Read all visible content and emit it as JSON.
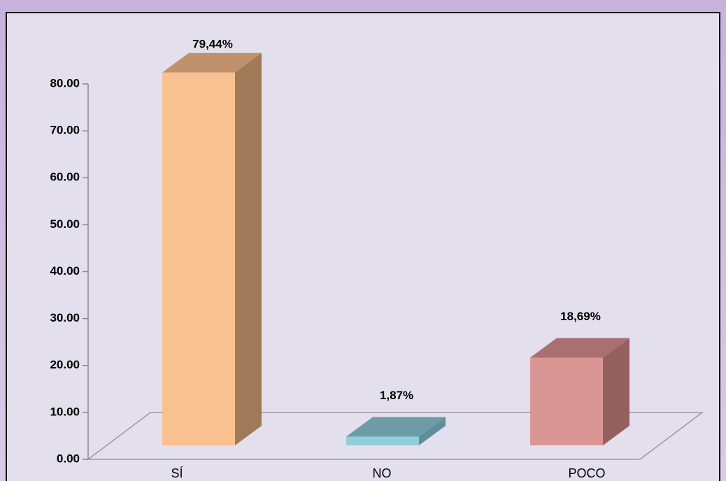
{
  "chart_data": {
    "type": "bar3d",
    "categories": [
      "SÍ",
      "NO",
      "POCO"
    ],
    "values": [
      79.44,
      1.87,
      18.69
    ],
    "value_labels": [
      "79,44%",
      "1,87%",
      "18,69%"
    ],
    "colors": [
      {
        "front": "#f9c18f",
        "side": "#a07a58",
        "top": "#c0916a"
      },
      {
        "front": "#92cddc",
        "side": "#5f8f9a",
        "top": "#6e9ca6"
      },
      {
        "front": "#d99694",
        "side": "#956060",
        "top": "#a87070"
      }
    ],
    "ylim": [
      0,
      80
    ],
    "yticks": [
      {
        "value": 0,
        "label": "0.00"
      },
      {
        "value": 10,
        "label": "10.00"
      },
      {
        "value": 20,
        "label": "20.00"
      },
      {
        "value": 30,
        "label": "30.00"
      },
      {
        "value": 40,
        "label": "40.00"
      },
      {
        "value": 50,
        "label": "50.00"
      },
      {
        "value": 60,
        "label": "60.00"
      },
      {
        "value": 70,
        "label": "70.00"
      },
      {
        "value": 80,
        "label": "80.00"
      }
    ]
  }
}
